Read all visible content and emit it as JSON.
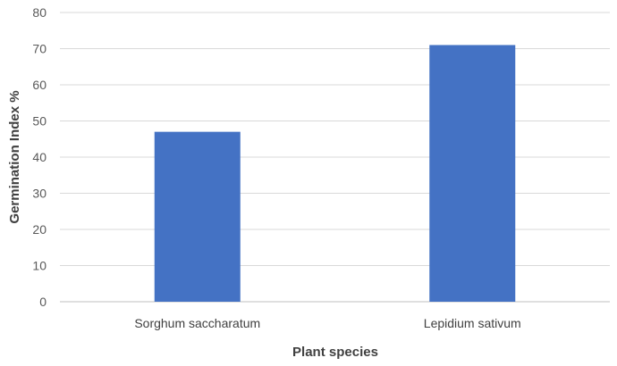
{
  "chart_data": {
    "type": "bar",
    "title": "",
    "xlabel": "Plant species",
    "ylabel": "Germination Index %",
    "categories": [
      "Sorghum saccharatum",
      "Lepidium sativum"
    ],
    "values": [
      47,
      71
    ],
    "ylim": [
      0,
      80
    ],
    "yticks": [
      0,
      10,
      20,
      30,
      40,
      50,
      60,
      70,
      80
    ],
    "grid": true,
    "legend": "none",
    "bar_color": "#4472C4"
  }
}
